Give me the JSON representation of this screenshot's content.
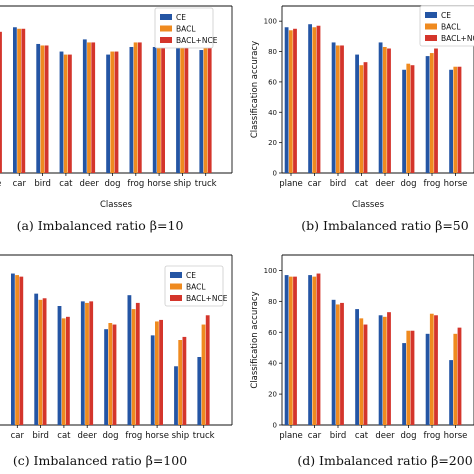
{
  "colors": {
    "CE": "#2455a4",
    "BACL": "#ef8a1f",
    "BACL+NCE": "#d4352b"
  },
  "legend_labels": [
    "CE",
    "BACL",
    "BACL+NCE"
  ],
  "chart_data": [
    {
      "type": "bar",
      "caption": "(a) Imbalanced ratio β=10",
      "xlabel": "Classes",
      "ylabel": "",
      "ylim": [
        0,
        110
      ],
      "yticks": [],
      "categories": [
        "plane",
        "car",
        "bird",
        "cat",
        "deer",
        "dog",
        "frog",
        "horse",
        "ship",
        "truck"
      ],
      "tick_labels": [
        "ne",
        "car",
        "bird",
        "cat",
        "deer",
        "dog",
        "frog",
        "horse",
        "ship",
        "truck"
      ],
      "series": [
        {
          "name": "CE",
          "values": [
            93,
            96,
            85,
            80,
            88,
            78,
            83,
            83,
            88,
            81
          ]
        },
        {
          "name": "BACL",
          "values": [
            93,
            95,
            84,
            78,
            86,
            80,
            86,
            84,
            90,
            84
          ]
        },
        {
          "name": "BACL+NCE",
          "values": [
            93,
            95,
            84,
            78,
            86,
            80,
            86,
            83,
            89,
            85
          ]
        }
      ],
      "legend": "top-right",
      "grid": false
    },
    {
      "type": "bar",
      "caption": "(b) Imbalanced ratio β=50",
      "xlabel": "Classes",
      "ylabel": "Classification accuracy",
      "ylim": [
        0,
        110
      ],
      "yticks": [
        0,
        20,
        40,
        60,
        80,
        100
      ],
      "categories": [
        "plane",
        "car",
        "bird",
        "cat",
        "deer",
        "dog",
        "frog",
        "horse"
      ],
      "tick_labels": [
        "plane",
        "car",
        "bird",
        "cat",
        "deer",
        "dog",
        "frog",
        "horse"
      ],
      "series": [
        {
          "name": "CE",
          "values": [
            96,
            98,
            86,
            78,
            86,
            68,
            77,
            68
          ]
        },
        {
          "name": "BACL",
          "values": [
            94,
            96,
            84,
            71,
            83,
            72,
            79,
            70
          ]
        },
        {
          "name": "BACL+NCE",
          "values": [
            95,
            97,
            84,
            73,
            82,
            71,
            82,
            70
          ]
        }
      ],
      "legend": "top-right",
      "grid": false
    },
    {
      "type": "bar",
      "caption": "(c) Imbalanced ratio β=100",
      "xlabel": "",
      "ylabel": "",
      "ylim": [
        0,
        110
      ],
      "yticks": [],
      "categories": [
        "plane",
        "car",
        "bird",
        "cat",
        "deer",
        "dog",
        "frog",
        "horse",
        "ship",
        "truck"
      ],
      "tick_labels": [
        "ne",
        "car",
        "bird",
        "cat",
        "deer",
        "dog",
        "frog",
        "horse",
        "ship",
        "truck"
      ],
      "series": [
        {
          "name": "CE",
          "values": [
            94,
            98,
            85,
            77,
            80,
            62,
            84,
            58,
            38,
            44
          ]
        },
        {
          "name": "BACL",
          "values": [
            94,
            97,
            81,
            69,
            79,
            66,
            75,
            67,
            55,
            65
          ]
        },
        {
          "name": "BACL+NCE",
          "values": [
            94,
            96,
            82,
            70,
            80,
            65,
            79,
            68,
            57,
            71
          ]
        }
      ],
      "legend": "top-right",
      "grid": false
    },
    {
      "type": "bar",
      "caption": "(d) Imbalanced ratio β=200",
      "xlabel": "",
      "ylabel": "Classification accuracy",
      "ylim": [
        0,
        110
      ],
      "yticks": [
        0,
        20,
        40,
        60,
        80,
        100
      ],
      "categories": [
        "plane",
        "car",
        "bird",
        "cat",
        "deer",
        "dog",
        "frog",
        "horse"
      ],
      "tick_labels": [
        "plane",
        "car",
        "bird",
        "cat",
        "deer",
        "dog",
        "frog",
        "horse"
      ],
      "series": [
        {
          "name": "CE",
          "values": [
            97,
            97,
            81,
            75,
            71,
            53,
            59,
            42
          ]
        },
        {
          "name": "BACL",
          "values": [
            96,
            96,
            78,
            69,
            70,
            61,
            72,
            59
          ]
        },
        {
          "name": "BACL+NCE",
          "values": [
            96,
            98,
            79,
            65,
            73,
            61,
            71,
            63
          ]
        }
      ],
      "legend": "none",
      "grid": false
    }
  ]
}
